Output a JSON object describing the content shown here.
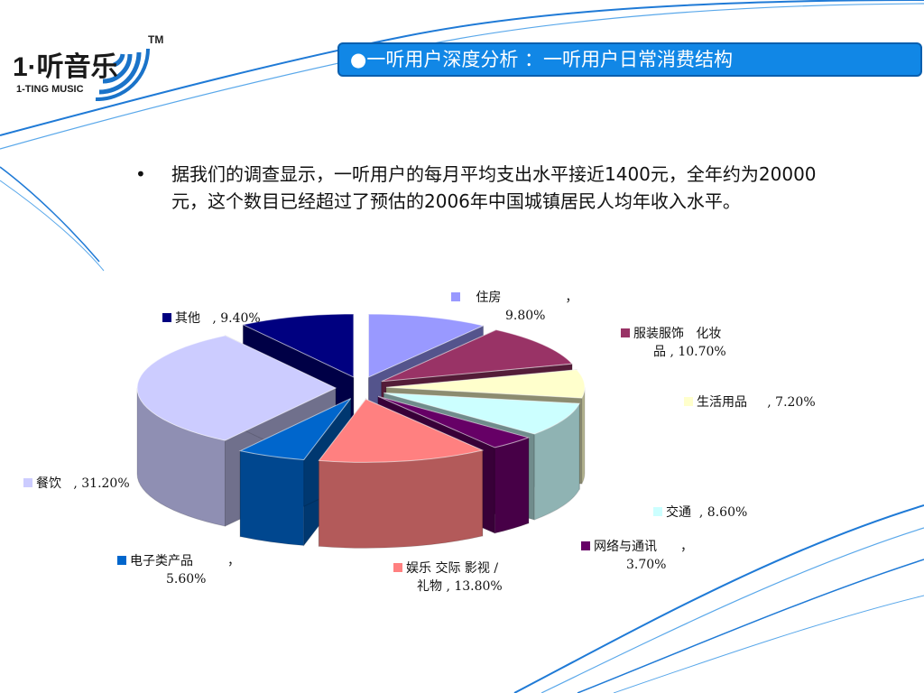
{
  "logo": {
    "brand_cn": "1·听音乐",
    "brand_en": "1-TING MUSIC",
    "tm": "TM"
  },
  "header": {
    "title": "●一听用户深度分析 ：一听用户日常消费结构"
  },
  "bullet": {
    "marker": "•",
    "text": "据我们的调查显示，一听用户的每月平均支出水平接近1400元，全年约为20000元，这个数目已经超过了预估的2006年中国城镇居民人均年收入水平。"
  },
  "chart_data": {
    "type": "pie",
    "title": "",
    "series": [
      {
        "name": "住房",
        "value": 9.8,
        "label": "9.80%",
        "color": "#9999ff"
      },
      {
        "name": "服装服饰 化妆品",
        "value": 10.7,
        "label": "10.70%",
        "color": "#993366"
      },
      {
        "name": "生活用品",
        "value": 7.2,
        "label": "7.20%",
        "color": "#ffffcc"
      },
      {
        "name": "交通",
        "value": 8.6,
        "label": "8.60%",
        "color": "#ccffff"
      },
      {
        "name": "网络与通讯",
        "value": 3.7,
        "label": "3.70%",
        "color": "#660066"
      },
      {
        "name": "娱乐 交际 影视 / 礼物",
        "value": 13.8,
        "label": "13.80%",
        "color": "#ff8080"
      },
      {
        "name": "电子类产品",
        "value": 5.6,
        "label": "5.60%",
        "color": "#0066cc"
      },
      {
        "name": "餐饮",
        "value": 31.2,
        "label": "31.20%",
        "color": "#ccccff"
      },
      {
        "name": "其他",
        "value": 9.4,
        "label": "9.40%",
        "color": "#000080"
      }
    ],
    "legend_labels": {
      "housing": [
        "住房",
        "，",
        "9.80%"
      ],
      "clothing": [
        "服装服饰",
        "化妆",
        "品 , 10.70%"
      ],
      "daily": [
        "生活用品",
        ", 7.20%"
      ],
      "traffic": [
        "交通",
        ", 8.60%"
      ],
      "network": [
        "网络与通讯",
        "，",
        "3.70%"
      ],
      "entertainment": [
        "娱乐 交际 影视 /",
        "礼物 , 13.80%"
      ],
      "electronics": [
        "电子类产品",
        "，",
        "5.60%"
      ],
      "dining": [
        "餐饮",
        ", 31.20%"
      ],
      "other": [
        "其他",
        ", 9.40%"
      ]
    }
  }
}
